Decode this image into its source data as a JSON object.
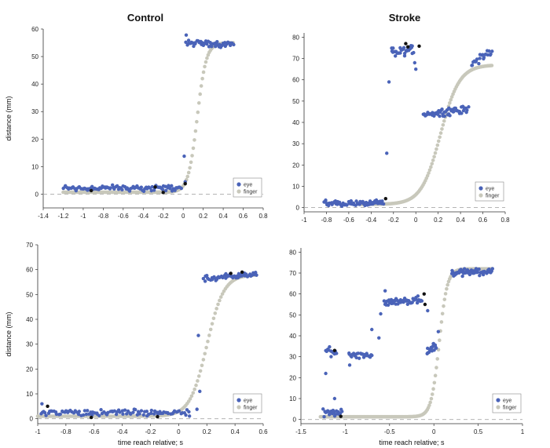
{
  "colors": {
    "eye": "#4a63b8",
    "finger": "#c8c8bb",
    "event": "#111111",
    "axis": "#333333",
    "baseline": "#aaaaaa"
  },
  "column_titles": [
    "Control",
    "Stroke"
  ],
  "chart_data": [
    {
      "type": "scatter",
      "title": "Control",
      "xlabel": "",
      "ylabel": "distance (mm)",
      "xlim": [
        -1.4,
        0.8
      ],
      "ylim": [
        -5,
        60
      ],
      "xticks": [
        -1.4,
        -1.2,
        -1,
        -0.8,
        -0.6,
        -0.4,
        -0.2,
        0,
        0.2,
        0.4,
        0.6,
        0.8
      ],
      "xticklabels": [
        "-1.4",
        "-1.2",
        "-1",
        "-0.8",
        "-0.6",
        "-0.4",
        "-0.2",
        "0",
        "0.2",
        "0.4",
        "0.6",
        "0.8"
      ],
      "yticks": [
        0,
        10,
        20,
        30,
        40,
        50,
        60
      ],
      "yticklabels": [
        "0",
        "10",
        "20",
        "30",
        "40",
        "50",
        "60"
      ],
      "legend": [
        "eye",
        "finger"
      ],
      "series": [
        {
          "name": "eye",
          "segments": [
            {
              "x": [
                -1.2,
                -0.02
              ],
              "y": [
                2.2,
                2.2
              ],
              "spread": 1.4,
              "n": 95
            },
            {
              "x": [
                0.03,
                0.5
              ],
              "y": [
                55,
                54.5
              ],
              "spread": 1.5,
              "n": 50
            }
          ],
          "extra_points": [
            [
              0.01,
              13.8
            ],
            [
              0.02,
              4.5
            ],
            [
              0.03,
              57.8
            ]
          ]
        },
        {
          "name": "finger",
          "shape": "sigmoid",
          "x": [
            -1.2,
            0.5
          ],
          "start": 0.7,
          "end": 55,
          "center": 0.14,
          "width": 0.045,
          "n": 150
        },
        {
          "name": "event",
          "points": [
            [
              -0.92,
              1.3
            ],
            [
              -0.28,
              2.6
            ],
            [
              -0.2,
              0.6
            ],
            [
              0.02,
              3.8
            ]
          ]
        }
      ]
    },
    {
      "type": "scatter",
      "title": "Stroke",
      "xlabel": "",
      "ylabel": "",
      "xlim": [
        -1,
        0.8
      ],
      "ylim": [
        -2,
        82
      ],
      "xticks": [
        -1,
        -0.8,
        -0.6,
        -0.4,
        -0.2,
        0,
        0.2,
        0.4,
        0.6,
        0.8
      ],
      "xticklabels": [
        "-1",
        "-0.8",
        "-0.6",
        "-0.4",
        "-0.2",
        "0",
        "0.2",
        "0.4",
        "0.6",
        "0.8"
      ],
      "yticks": [
        0,
        10,
        20,
        30,
        40,
        50,
        60,
        70,
        80
      ],
      "yticklabels": [
        "0",
        "10",
        "20",
        "30",
        "40",
        "50",
        "60",
        "70",
        "80"
      ],
      "legend": [
        "eye",
        "finger"
      ],
      "series": [
        {
          "name": "eye",
          "segments": [
            {
              "x": [
                -0.82,
                -0.29
              ],
              "y": [
                2,
                2
              ],
              "spread": 1.6,
              "n": 60
            },
            {
              "x": [
                -0.22,
                -0.02
              ],
              "y": [
                73,
                74
              ],
              "spread": 3.0,
              "n": 30
            },
            {
              "x": [
                0.07,
                0.47
              ],
              "y": [
                44,
                46
              ],
              "spread": 2.2,
              "n": 55
            },
            {
              "x": [
                0.5,
                0.68
              ],
              "y": [
                68,
                73
              ],
              "spread": 2.2,
              "n": 22
            }
          ],
          "extra_points": [
            [
              -0.26,
              25.5
            ],
            [
              -0.24,
              59
            ],
            [
              -0.01,
              68
            ],
            [
              0.0,
              65
            ]
          ]
        },
        {
          "name": "finger",
          "shape": "sigmoid",
          "x": [
            -0.5,
            0.68
          ],
          "start": 1.5,
          "end": 67,
          "center": 0.22,
          "width": 0.085,
          "n": 120
        },
        {
          "name": "event",
          "points": [
            [
              -0.27,
              4.2
            ],
            [
              -0.09,
              77
            ],
            [
              -0.07,
              75.5
            ],
            [
              0.03,
              75.8
            ]
          ]
        }
      ]
    },
    {
      "type": "scatter",
      "title": "",
      "xlabel": "time  reach relative; s",
      "ylabel": "distance (mm)",
      "xlim": [
        -1,
        0.6
      ],
      "ylim": [
        -2,
        70
      ],
      "xticks": [
        -1,
        -0.8,
        -0.6,
        -0.4,
        -0.2,
        0,
        0.2,
        0.4,
        0.6
      ],
      "xticklabels": [
        "-1",
        "-0.8",
        "-0.6",
        "-0.4",
        "-0.2",
        "0",
        "0.2",
        "0.4",
        "0.6"
      ],
      "yticks": [
        0,
        10,
        20,
        30,
        40,
        50,
        60,
        70
      ],
      "yticklabels": [
        "0",
        "10",
        "20",
        "30",
        "40",
        "50",
        "60",
        "70"
      ],
      "legend": [
        "eye",
        "finger"
      ],
      "series": [
        {
          "name": "eye",
          "segments": [
            {
              "x": [
                -0.98,
                0.08
              ],
              "y": [
                2.5,
                2.5
              ],
              "spread": 1.6,
              "n": 100
            },
            {
              "x": [
                0.18,
                0.55
              ],
              "y": [
                56.5,
                58
              ],
              "spread": 1.5,
              "n": 50
            }
          ],
          "extra_points": [
            [
              0.14,
              33.5
            ],
            [
              0.15,
              11
            ],
            [
              -0.97,
              6
            ],
            [
              0.13,
              3.8
            ]
          ]
        },
        {
          "name": "finger",
          "shape": "sigmoid",
          "x": [
            -1.0,
            0.55
          ],
          "start": 1.0,
          "end": 58,
          "center": 0.2,
          "width": 0.06,
          "n": 150
        },
        {
          "name": "event",
          "points": [
            [
              -0.93,
              5
            ],
            [
              -0.62,
              0.5
            ],
            [
              -0.15,
              0.8
            ],
            [
              0.37,
              58.5
            ],
            [
              0.45,
              59
            ]
          ]
        }
      ]
    },
    {
      "type": "scatter",
      "title": "",
      "xlabel": "time  reach relative; s",
      "ylabel": "",
      "xlim": [
        -1.5,
        1
      ],
      "ylim": [
        -2,
        82
      ],
      "xticks": [
        -1.5,
        -1,
        -0.5,
        0,
        0.5,
        1
      ],
      "xticklabels": [
        "-1.5",
        "-1",
        "-0.5",
        "0",
        "0.5",
        "1"
      ],
      "yticks": [
        0,
        10,
        20,
        30,
        40,
        50,
        60,
        70,
        80
      ],
      "yticklabels": [
        "0",
        "10",
        "20",
        "30",
        "40",
        "50",
        "60",
        "70",
        "80"
      ],
      "legend": [
        "eye",
        "finger"
      ],
      "series": [
        {
          "name": "eye",
          "segments": [
            {
              "x": [
                -1.24,
                -1.04
              ],
              "y": [
                3,
                3
              ],
              "spread": 2.0,
              "n": 22
            },
            {
              "x": [
                -1.22,
                -1.1
              ],
              "y": [
                33,
                32
              ],
              "spread": 3.0,
              "n": 12
            },
            {
              "x": [
                -0.96,
                -0.7
              ],
              "y": [
                31,
                31
              ],
              "spread": 2.0,
              "n": 25
            },
            {
              "x": [
                -0.56,
                -0.14
              ],
              "y": [
                56,
                57
              ],
              "spread": 1.8,
              "n": 50
            },
            {
              "x": [
                -0.08,
                0.03
              ],
              "y": [
                33,
                35
              ],
              "spread": 2.5,
              "n": 16
            },
            {
              "x": [
                0.2,
                0.66
              ],
              "y": [
                70,
                71
              ],
              "spread": 2.0,
              "n": 55
            }
          ],
          "extra_points": [
            [
              -1.22,
              22
            ],
            [
              -1.12,
              10
            ],
            [
              -1.25,
              5
            ],
            [
              -0.95,
              26
            ],
            [
              -0.55,
              61.5
            ],
            [
              -0.6,
              50.5
            ],
            [
              -0.7,
              43
            ],
            [
              -0.18,
              59
            ],
            [
              -0.07,
              52
            ],
            [
              0.05,
              42
            ],
            [
              -0.62,
              39
            ]
          ]
        },
        {
          "name": "finger",
          "shape": "sigmoid",
          "x": [
            -1.28,
            0.66
          ],
          "start": 1.3,
          "end": 72,
          "center": 0.06,
          "width": 0.045,
          "n": 170
        },
        {
          "name": "event",
          "points": [
            [
              -1.12,
              33
            ],
            [
              -0.11,
              60
            ],
            [
              -0.1,
              55
            ],
            [
              -1.05,
              1.5
            ]
          ]
        }
      ]
    }
  ]
}
